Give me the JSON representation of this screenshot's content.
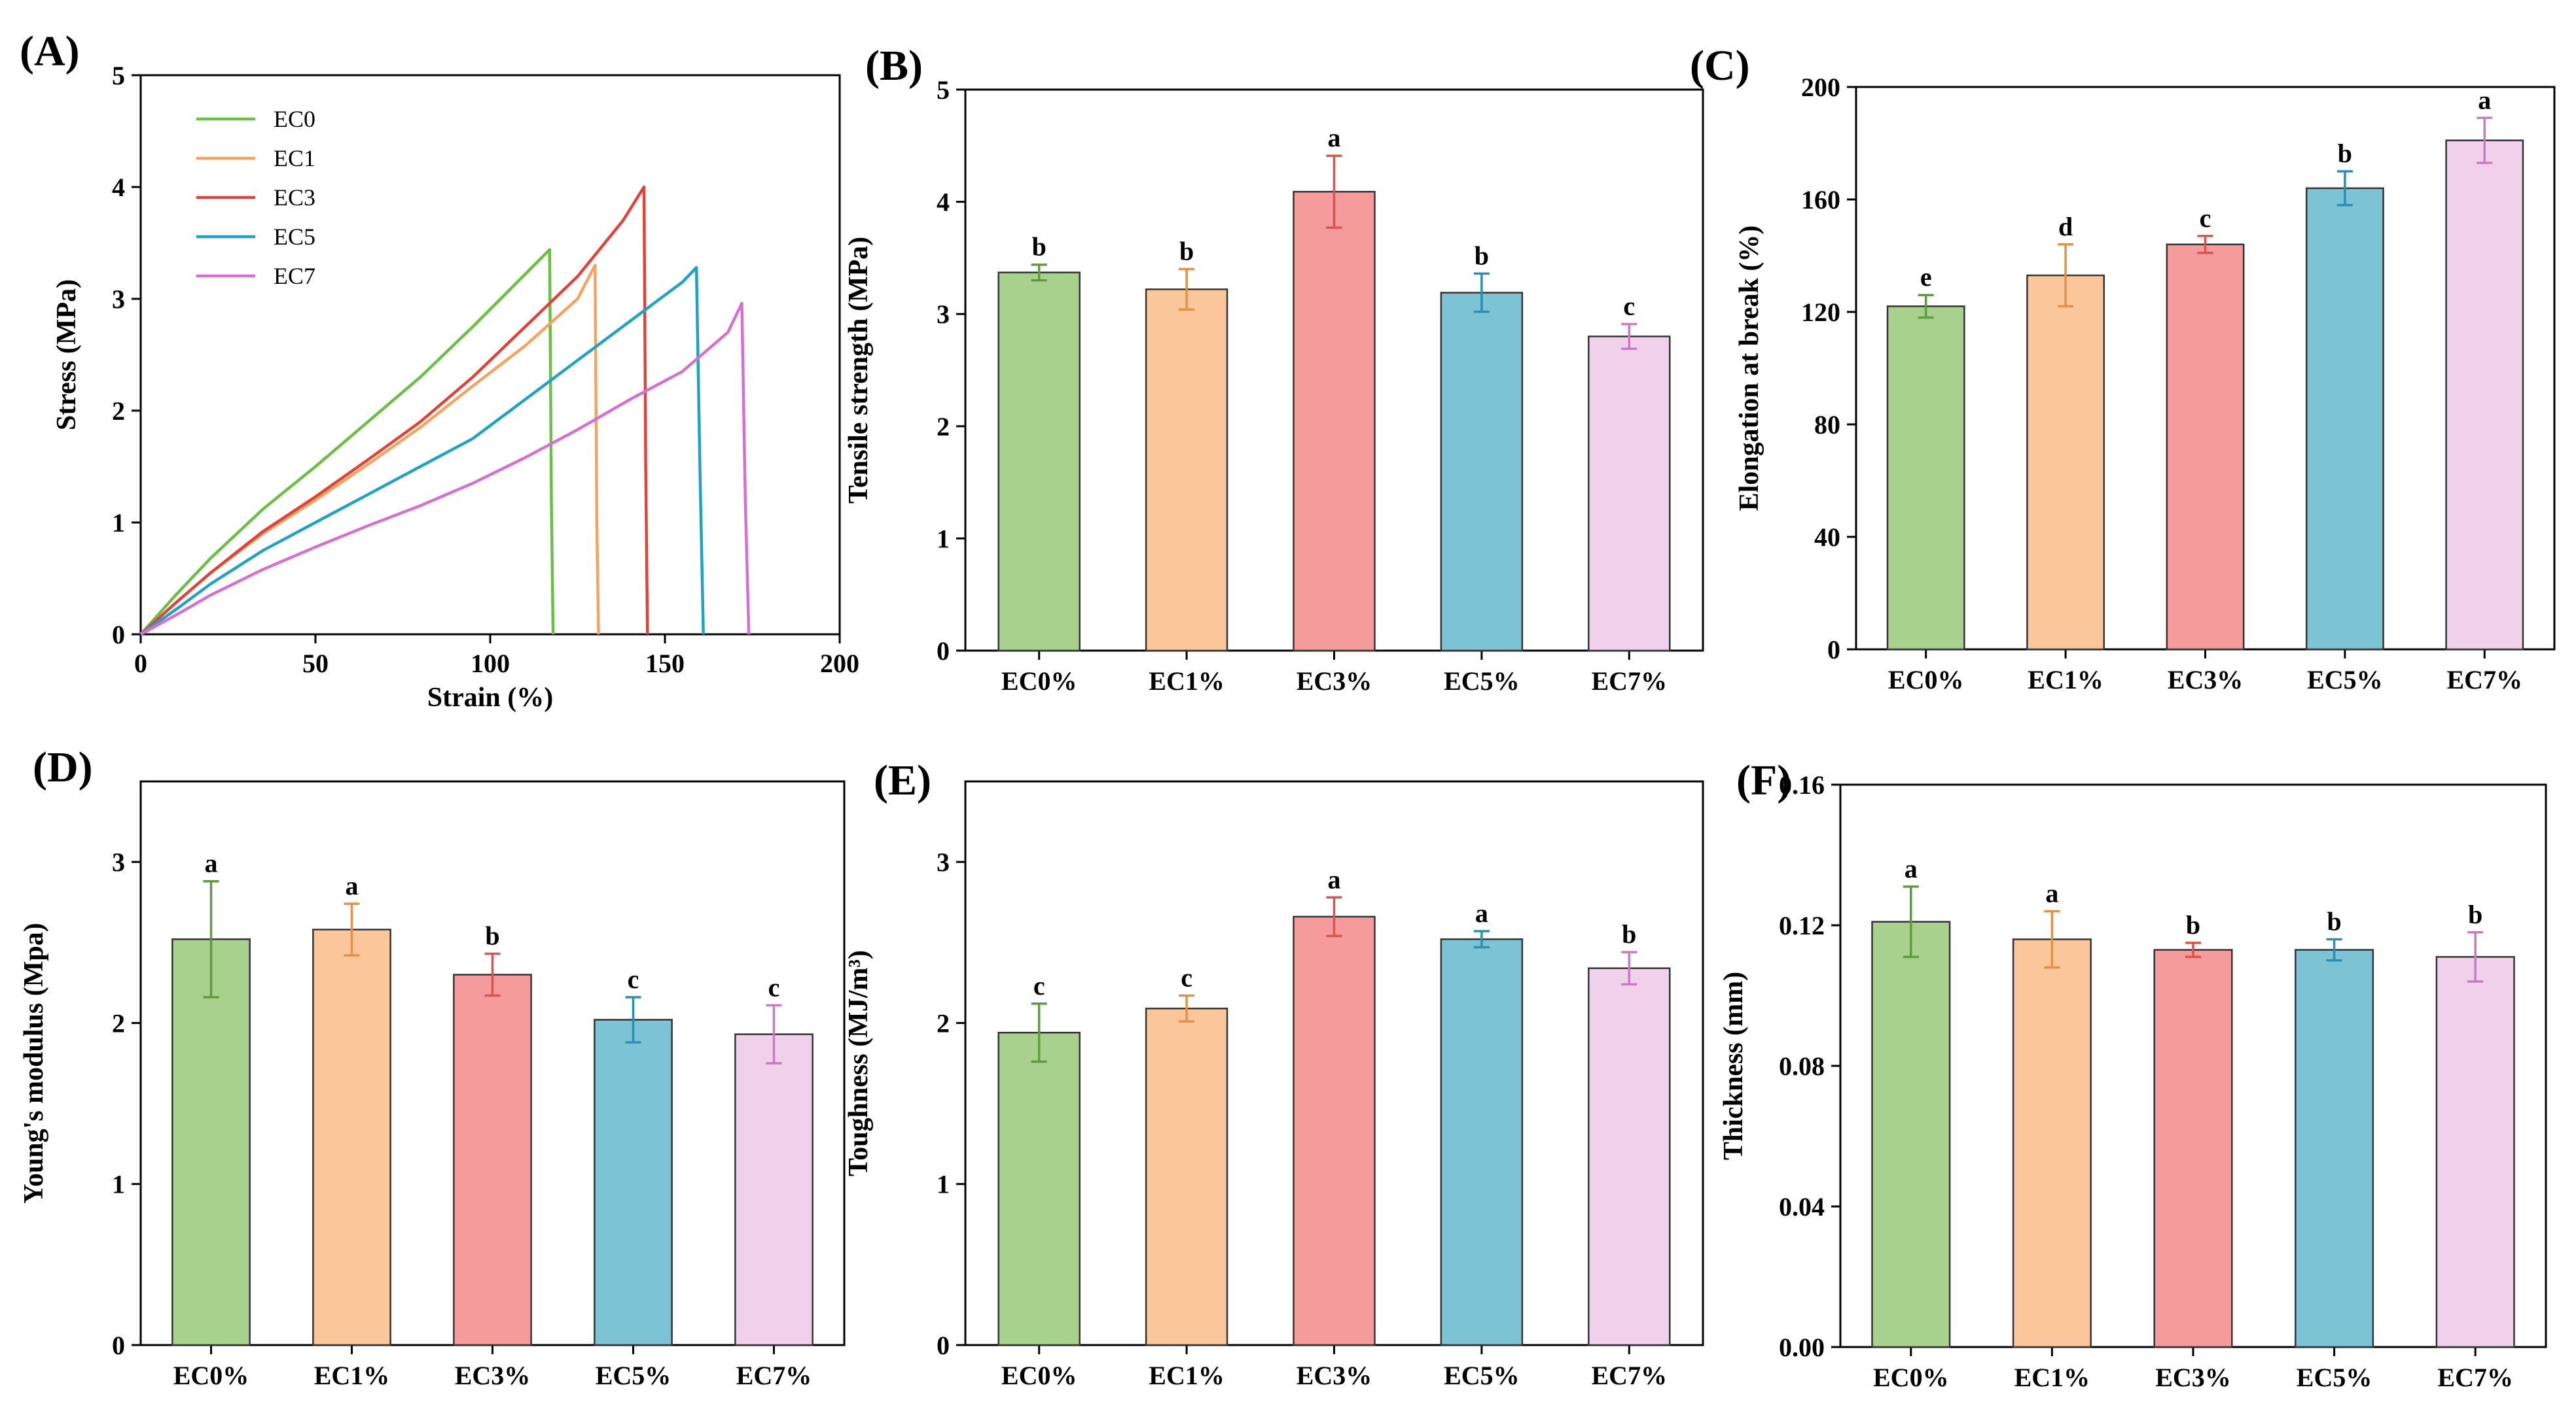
{
  "figure": {
    "colors": {
      "fills": [
        "#a9d18e",
        "#fbc79a",
        "#f59b9b",
        "#7cc3d6",
        "#f1d0ec"
      ],
      "strokes": [
        "#5f9a43",
        "#e0914a",
        "#d9534f",
        "#2a8fb0",
        "#c77cc0"
      ],
      "lines": [
        "#6bbf45",
        "#f4a460",
        "#e0433a",
        "#1fa2c3",
        "#d66fd2"
      ]
    }
  },
  "chart_data": [
    {
      "panel": "(A)",
      "type": "line",
      "title": "",
      "xlabel": "Strain (%)",
      "ylabel": "Stress (MPa)",
      "xlim": [
        0,
        200
      ],
      "ylim": [
        0,
        5
      ],
      "xticks": [
        0,
        50,
        100,
        150,
        200
      ],
      "yticks": [
        0,
        1,
        2,
        3,
        4,
        5
      ],
      "legend_position": "top-left",
      "series": [
        {
          "name": "EC0",
          "x": [
            0,
            10,
            20,
            35,
            50,
            65,
            80,
            95,
            110,
            117,
            117.5,
            118
          ],
          "y": [
            0,
            0.35,
            0.68,
            1.12,
            1.5,
            1.9,
            2.3,
            2.75,
            3.22,
            3.44,
            1.2,
            0
          ]
        },
        {
          "name": "EC1",
          "x": [
            0,
            10,
            20,
            35,
            50,
            65,
            80,
            95,
            110,
            125,
            130,
            130.5,
            131
          ],
          "y": [
            0,
            0.28,
            0.55,
            0.9,
            1.2,
            1.52,
            1.85,
            2.22,
            2.58,
            3.0,
            3.3,
            1.0,
            0
          ]
        },
        {
          "name": "EC3",
          "x": [
            0,
            10,
            20,
            35,
            50,
            65,
            80,
            95,
            110,
            125,
            138,
            144,
            144.5,
            145
          ],
          "y": [
            0,
            0.28,
            0.55,
            0.92,
            1.23,
            1.56,
            1.9,
            2.3,
            2.75,
            3.2,
            3.7,
            4.0,
            1.5,
            0
          ]
        },
        {
          "name": "EC5",
          "x": [
            0,
            10,
            20,
            35,
            50,
            65,
            80,
            95,
            110,
            125,
            140,
            155,
            159,
            160,
            161
          ],
          "y": [
            0,
            0.22,
            0.45,
            0.75,
            1.0,
            1.25,
            1.5,
            1.75,
            2.1,
            2.45,
            2.8,
            3.15,
            3.28,
            1.5,
            0
          ]
        },
        {
          "name": "EC7",
          "x": [
            0,
            10,
            20,
            35,
            50,
            65,
            80,
            95,
            110,
            125,
            140,
            155,
            168,
            172,
            173,
            174
          ],
          "y": [
            0,
            0.17,
            0.35,
            0.58,
            0.78,
            0.97,
            1.15,
            1.35,
            1.58,
            1.83,
            2.1,
            2.35,
            2.7,
            2.96,
            1.2,
            0
          ]
        }
      ]
    },
    {
      "panel": "(B)",
      "type": "bar",
      "title": "",
      "xlabel": "",
      "ylabel": "Tensile strength (MPa)",
      "categories": [
        "EC0%",
        "EC1%",
        "EC3%",
        "EC5%",
        "EC7%"
      ],
      "values": [
        3.37,
        3.22,
        4.09,
        3.19,
        2.8
      ],
      "errors": [
        0.07,
        0.18,
        0.32,
        0.17,
        0.11
      ],
      "letters": [
        "b",
        "b",
        "a",
        "b",
        "c"
      ],
      "ylim": [
        0,
        5
      ],
      "yticks": [
        "0",
        "1",
        "2",
        "3",
        "4",
        "5"
      ]
    },
    {
      "panel": "(C)",
      "type": "bar",
      "title": "",
      "xlabel": "",
      "ylabel": "Elongation at break (%)",
      "categories": [
        "EC0%",
        "EC1%",
        "EC3%",
        "EC5%",
        "EC7%"
      ],
      "values": [
        122,
        133,
        144,
        164,
        181
      ],
      "errors": [
        4,
        11,
        3,
        6,
        8
      ],
      "letters": [
        "e",
        "d",
        "c",
        "b",
        "a"
      ],
      "ylim": [
        0,
        200
      ],
      "yticks": [
        "0",
        "40",
        "80",
        "120",
        "160",
        "200"
      ]
    },
    {
      "panel": "(D)",
      "type": "bar",
      "title": "",
      "xlabel": "",
      "ylabel": "Young's modulus (Mpa)",
      "categories": [
        "EC0%",
        "EC1%",
        "EC3%",
        "EC5%",
        "EC7%"
      ],
      "values": [
        2.52,
        2.58,
        2.3,
        2.02,
        1.93
      ],
      "errors": [
        0.36,
        0.16,
        0.13,
        0.14,
        0.18
      ],
      "letters": [
        "a",
        "a",
        "b",
        "c",
        "c"
      ],
      "ylim": [
        0,
        3.5
      ],
      "yticks": [
        "0",
        "1",
        "2",
        "3"
      ]
    },
    {
      "panel": "(E)",
      "type": "bar",
      "title": "",
      "xlabel": "",
      "ylabel": "Toughness (MJ/m³)",
      "categories": [
        "EC0%",
        "EC1%",
        "EC3%",
        "EC5%",
        "EC7%"
      ],
      "values": [
        1.94,
        2.09,
        2.66,
        2.52,
        2.34
      ],
      "errors": [
        0.18,
        0.08,
        0.12,
        0.05,
        0.1
      ],
      "letters": [
        "c",
        "c",
        "a",
        "a",
        "b"
      ],
      "ylim": [
        0,
        3.5
      ],
      "yticks": [
        "0",
        "1",
        "2",
        "3"
      ]
    },
    {
      "panel": "(F)",
      "type": "bar",
      "title": "",
      "xlabel": "",
      "ylabel": "Thickness (mm)",
      "categories": [
        "EC0%",
        "EC1%",
        "EC3%",
        "EC5%",
        "EC7%"
      ],
      "values": [
        0.121,
        0.116,
        0.113,
        0.113,
        0.111
      ],
      "errors": [
        0.01,
        0.008,
        0.002,
        0.003,
        0.007
      ],
      "letters": [
        "a",
        "a",
        "b",
        "b",
        "b"
      ],
      "ylim": [
        0,
        0.16
      ],
      "yticks": [
        "0.00",
        "0.04",
        "0.08",
        "0.12",
        "0.16"
      ]
    }
  ]
}
